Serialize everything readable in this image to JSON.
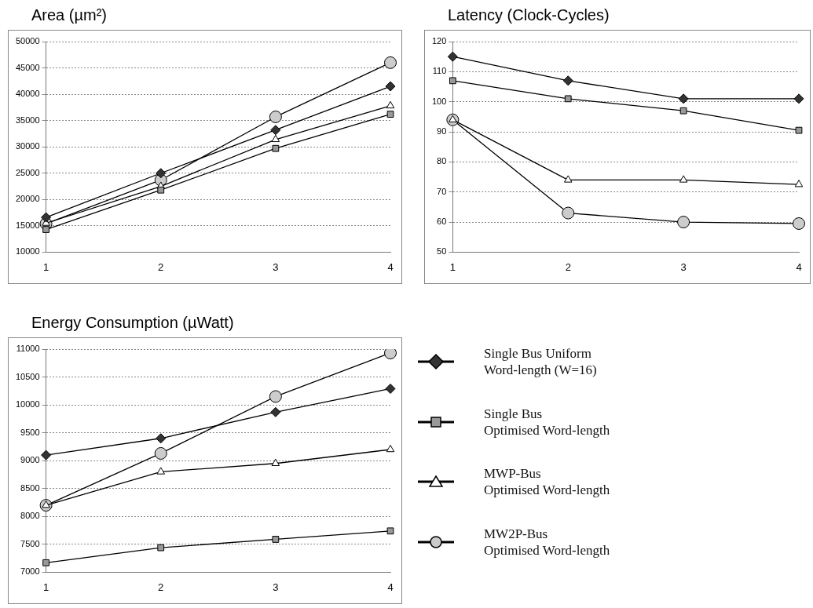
{
  "chart_data": [
    {
      "type": "line",
      "title": "Area (µm²)",
      "categories": [
        "1",
        "2",
        "3",
        "4"
      ],
      "ylim": [
        10000,
        50000
      ],
      "yticks": [
        10000,
        15000,
        20000,
        25000,
        30000,
        35000,
        40000,
        45000,
        50000
      ],
      "grid": "y",
      "legend": false,
      "series": [
        {
          "color": "#333333",
          "marker": "diamond",
          "values": [
            16600,
            25000,
            33200,
            41500
          ]
        },
        {
          "color": "#999999",
          "marker": "square",
          "values": [
            14300,
            21800,
            29700,
            36200
          ]
        },
        {
          "color": "#ffffff",
          "marker": "triangle",
          "values": [
            15500,
            22500,
            31400,
            37800
          ]
        },
        {
          "color": "#cccccc",
          "marker": "circle",
          "values": [
            15400,
            23700,
            35700,
            46000
          ]
        }
      ]
    },
    {
      "type": "line",
      "title": "Latency (Clock-Cycles)",
      "categories": [
        "1",
        "2",
        "3",
        "4"
      ],
      "ylim": [
        50,
        120
      ],
      "yticks": [
        50,
        60,
        70,
        80,
        90,
        100,
        110,
        120
      ],
      "grid": "y",
      "legend": false,
      "series": [
        {
          "color": "#333333",
          "marker": "diamond",
          "values": [
            115,
            107,
            101,
            101
          ]
        },
        {
          "color": "#999999",
          "marker": "square",
          "values": [
            107,
            101,
            97,
            90.5
          ]
        },
        {
          "color": "#ffffff",
          "marker": "triangle",
          "values": [
            94,
            74,
            74,
            72.5
          ]
        },
        {
          "color": "#cccccc",
          "marker": "circle",
          "values": [
            94,
            63,
            60,
            59.5
          ]
        }
      ]
    },
    {
      "type": "line",
      "title": "Energy Consumption (µWatt)",
      "categories": [
        "1",
        "2",
        "3",
        "4"
      ],
      "ylim": [
        7000,
        11000
      ],
      "yticks": [
        7000,
        7500,
        8000,
        8500,
        9000,
        9500,
        10000,
        10500,
        11000
      ],
      "grid": "y",
      "legend": "right",
      "series": [
        {
          "name": "Single Bus Uniform\nWord-length (W=16)",
          "color": "#333333",
          "marker": "diamond",
          "values": [
            9100,
            9400,
            9870,
            10290
          ]
        },
        {
          "name": "Single Bus\nOptimised Word-length",
          "color": "#999999",
          "marker": "square",
          "values": [
            7170,
            7440,
            7590,
            7740
          ]
        },
        {
          "name": "MWP-Bus\nOptimised Word-length",
          "color": "#ffffff",
          "marker": "triangle",
          "values": [
            8200,
            8800,
            8950,
            9200
          ]
        },
        {
          "name": "MW2P-Bus\nOptimised Word-length",
          "color": "#cccccc",
          "marker": "circle",
          "values": [
            8200,
            9130,
            10150,
            10930
          ]
        }
      ]
    }
  ]
}
